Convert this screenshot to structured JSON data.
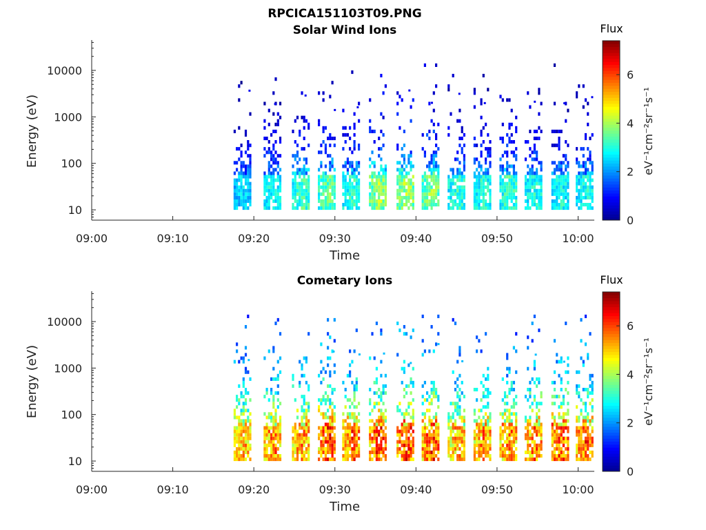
{
  "figure": {
    "title_line1": "RPCICA151103T09.PNG"
  },
  "colors": {
    "colormap": [
      "#00008f",
      "#0000ff",
      "#0080ff",
      "#00ffff",
      "#80ff80",
      "#ffff00",
      "#ff8000",
      "#ff0000",
      "#800000"
    ]
  },
  "chart_data": [
    {
      "type": "heatmap",
      "title": "Solar Wind Ions",
      "xlabel": "Time",
      "ylabel": "Energy (eV)",
      "x_ticks": [
        "09:00",
        "09:10",
        "09:20",
        "09:30",
        "09:40",
        "09:50",
        "10:00"
      ],
      "y_ticks": [
        "10",
        "100",
        "1000",
        "10000"
      ],
      "y_scale": "log",
      "ylim": [
        6,
        45000
      ],
      "xlim_minutes": [
        0,
        62
      ],
      "colorbar": {
        "title": "Flux",
        "label": "eV⁻¹cm⁻²sr⁻¹s⁻¹",
        "ticks": [
          "0",
          "2",
          "4",
          "6"
        ],
        "range": [
          0,
          7.4
        ]
      },
      "bursts": [
        {
          "t": 18.6,
          "flux": 2.8
        },
        {
          "t": 22.3,
          "flux": 3.2
        },
        {
          "t": 25.8,
          "flux": 3.6
        },
        {
          "t": 29.0,
          "flux": 3.8
        },
        {
          "t": 32.0,
          "flux": 3.4
        },
        {
          "t": 35.3,
          "flux": 4.2
        },
        {
          "t": 38.7,
          "flux": 4.3
        },
        {
          "t": 41.8,
          "flux": 4.1
        },
        {
          "t": 45.0,
          "flux": 3.4
        },
        {
          "t": 48.2,
          "flux": 3.3
        },
        {
          "t": 51.4,
          "flux": 3.5
        },
        {
          "t": 54.5,
          "flux": 3.2
        },
        {
          "t": 57.8,
          "flux": 3.1
        },
        {
          "t": 60.8,
          "flux": 3.2
        }
      ]
    },
    {
      "type": "heatmap",
      "title": "Cometary Ions",
      "xlabel": "Time",
      "ylabel": "Energy (eV)",
      "x_ticks": [
        "09:00",
        "09:10",
        "09:20",
        "09:30",
        "09:40",
        "09:50",
        "10:00"
      ],
      "y_ticks": [
        "10",
        "100",
        "1000",
        "10000"
      ],
      "y_scale": "log",
      "ylim": [
        6,
        45000
      ],
      "xlim_minutes": [
        0,
        62
      ],
      "colorbar": {
        "title": "Flux",
        "label": "eV⁻¹cm⁻²sr⁻¹s⁻¹",
        "ticks": [
          "0",
          "2",
          "4",
          "6"
        ],
        "range": [
          0,
          7.4
        ]
      },
      "bursts": [
        {
          "t": 18.6,
          "flux": 5.6
        },
        {
          "t": 22.3,
          "flux": 6.0
        },
        {
          "t": 25.8,
          "flux": 5.9
        },
        {
          "t": 29.0,
          "flux": 6.4
        },
        {
          "t": 32.0,
          "flux": 6.2
        },
        {
          "t": 35.3,
          "flux": 6.5
        },
        {
          "t": 38.7,
          "flux": 6.6
        },
        {
          "t": 41.8,
          "flux": 6.5
        },
        {
          "t": 45.0,
          "flux": 5.7
        },
        {
          "t": 48.2,
          "flux": 6.0
        },
        {
          "t": 51.4,
          "flux": 6.0
        },
        {
          "t": 54.5,
          "flux": 6.1
        },
        {
          "t": 57.8,
          "flux": 6.4
        },
        {
          "t": 60.8,
          "flux": 6.3
        }
      ]
    }
  ]
}
